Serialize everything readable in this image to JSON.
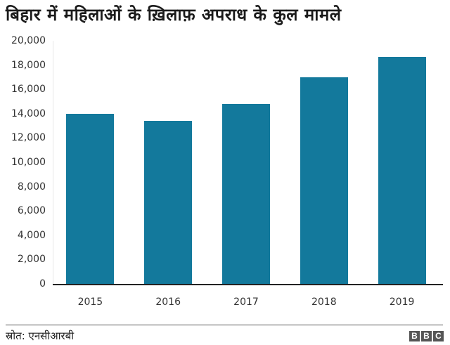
{
  "title": "बिहार में महिलाओं के ख़िलाफ़ अपराध के कुल मामले",
  "source": "स्रोत:  एनसीआरबी",
  "logo": [
    "B",
    "B",
    "C"
  ],
  "colors": {
    "bar": "#13799c",
    "axis": "#222222",
    "text": "#333333"
  },
  "y_ticks": [
    "0",
    "2,000",
    "4,000",
    "6,000",
    "8,000",
    "10,000",
    "12,000",
    "14,000",
    "16,000",
    "18,000",
    "20,000"
  ],
  "x_ticks": [
    "2015",
    "2016",
    "2017",
    "2018",
    "2019"
  ],
  "chart_data": {
    "type": "bar",
    "title": "बिहार में महिलाओं के ख़िलाफ़ अपराध के कुल मामले",
    "categories": [
      "2015",
      "2016",
      "2017",
      "2018",
      "2019"
    ],
    "values": [
      13990,
      13410,
      14800,
      16990,
      18670
    ],
    "xlabel": "",
    "ylabel": "",
    "ylim": [
      0,
      20000
    ],
    "yticks": [
      0,
      2000,
      4000,
      6000,
      8000,
      10000,
      12000,
      14000,
      16000,
      18000,
      20000
    ],
    "grid": false,
    "legend": null,
    "source": "स्रोत: एनसीआरबी"
  }
}
